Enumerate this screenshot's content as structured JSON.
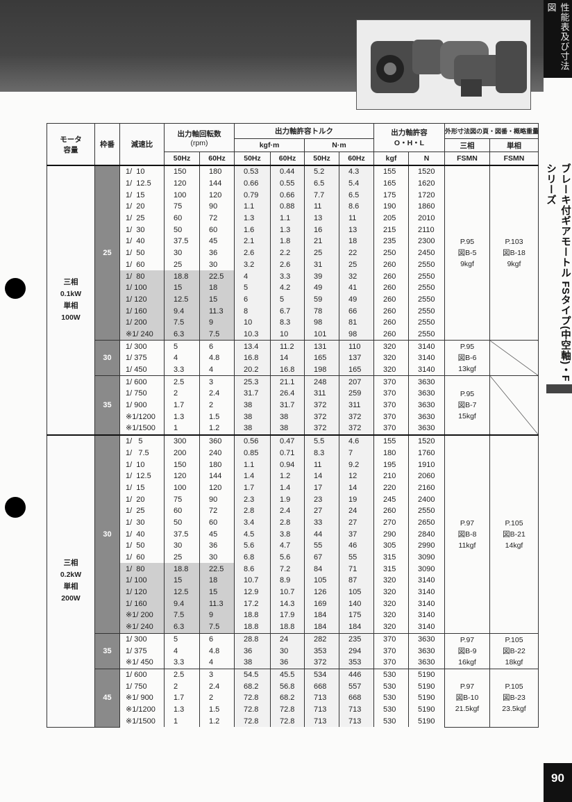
{
  "side_tab": "性能表及び寸法図",
  "side_title": "ブレーキ付ギアモートル FSタイプ(中空軸)・Fシリーズ",
  "page_number": "90",
  "header": {
    "motor": "モータ容量",
    "frame": "枠番",
    "ratio": "減速比",
    "speed": "出力軸回転数",
    "speed_unit": "(rpm)",
    "torque": "出力軸許容トルク",
    "kgfm": "kgf·m",
    "nm": "N·m",
    "ohl": "出力軸許容",
    "ohl_sub": "O・H・L",
    "dims": "外形寸法図の頁・図番・概略重量",
    "three_phase": "三相",
    "single_phase": "単相",
    "hz50": "50Hz",
    "hz60": "60Hz",
    "kgf": "kgf",
    "n": "N",
    "fsmn": "FSMN"
  },
  "sections": [
    {
      "motor": [
        "三相",
        "0.1kW",
        "単相",
        "100W"
      ],
      "groups": [
        {
          "frame": "25",
          "three": [
            "P.95",
            "図B-5",
            "9kgf"
          ],
          "single": [
            "P.103",
            "図B-18",
            "9kgf"
          ],
          "rows": [
            [
              "1/  10",
              "150",
              "180",
              "0.53",
              "0.44",
              "5.2",
              "4.3",
              "155",
              "1520",
              false
            ],
            [
              "1/  12.5",
              "120",
              "144",
              "0.66",
              "0.55",
              "6.5",
              "5.4",
              "165",
              "1620",
              false
            ],
            [
              "1/  15",
              "100",
              "120",
              "0.79",
              "0.66",
              "7.7",
              "6.5",
              "175",
              "1720",
              false
            ],
            [
              "1/  20",
              "75",
              "90",
              "1.1",
              "0.88",
              "11",
              "8.6",
              "190",
              "1860",
              false
            ],
            [
              "1/  25",
              "60",
              "72",
              "1.3",
              "1.1",
              "13",
              "11",
              "205",
              "2010",
              false
            ],
            [
              "1/  30",
              "50",
              "60",
              "1.6",
              "1.3",
              "16",
              "13",
              "215",
              "2110",
              false
            ],
            [
              "1/  40",
              "37.5",
              "45",
              "2.1",
              "1.8",
              "21",
              "18",
              "235",
              "2300",
              false
            ],
            [
              "1/  50",
              "30",
              "36",
              "2.6",
              "2.2",
              "25",
              "22",
              "250",
              "2450",
              false
            ],
            [
              "1/  60",
              "25",
              "30",
              "3.2",
              "2.6",
              "31",
              "25",
              "260",
              "2550",
              false
            ],
            [
              "1/  80",
              "18.8",
              "22.5",
              "4",
              "3.3",
              "39",
              "32",
              "260",
              "2550",
              true
            ],
            [
              "1/ 100",
              "15",
              "18",
              "5",
              "4.2",
              "49",
              "41",
              "260",
              "2550",
              true
            ],
            [
              "1/ 120",
              "12.5",
              "15",
              "6",
              "5",
              "59",
              "49",
              "260",
              "2550",
              true
            ],
            [
              "1/ 160",
              "9.4",
              "11.3",
              "8",
              "6.7",
              "78",
              "66",
              "260",
              "2550",
              true
            ],
            [
              "1/ 200",
              "7.5",
              "9",
              "10",
              "8.3",
              "98",
              "81",
              "260",
              "2550",
              true
            ],
            [
              "※1/ 240",
              "6.3",
              "7.5",
              "10.3",
              "10",
              "101",
              "98",
              "260",
              "2550",
              true
            ]
          ]
        },
        {
          "frame": "30",
          "three": [
            "P.95",
            "図B-6",
            "13kgf"
          ],
          "single": null,
          "rows": [
            [
              "1/ 300",
              "5",
              "6",
              "13.4",
              "11.2",
              "131",
              "110",
              "320",
              "3140",
              false
            ],
            [
              "1/ 375",
              "4",
              "4.8",
              "16.8",
              "14",
              "165",
              "137",
              "320",
              "3140",
              false
            ],
            [
              "1/ 450",
              "3.3",
              "4",
              "20.2",
              "16.8",
              "198",
              "165",
              "320",
              "3140",
              false
            ]
          ]
        },
        {
          "frame": "35",
          "three": [
            "P.95",
            "図B-7",
            "15kgf"
          ],
          "single": null,
          "rows": [
            [
              "1/ 600",
              "2.5",
              "3",
              "25.3",
              "21.1",
              "248",
              "207",
              "370",
              "3630",
              false
            ],
            [
              "1/ 750",
              "2",
              "2.4",
              "31.7",
              "26.4",
              "311",
              "259",
              "370",
              "3630",
              false
            ],
            [
              "1/ 900",
              "1.7",
              "2",
              "38",
              "31.7",
              "372",
              "311",
              "370",
              "3630",
              false
            ],
            [
              "※1/1200",
              "1.3",
              "1.5",
              "38",
              "38",
              "372",
              "372",
              "370",
              "3630",
              false
            ],
            [
              "※1/1500",
              "1",
              "1.2",
              "38",
              "38",
              "372",
              "372",
              "370",
              "3630",
              false
            ]
          ]
        }
      ]
    },
    {
      "motor": [
        "三相",
        "0.2kW",
        "単相",
        "200W"
      ],
      "groups": [
        {
          "frame": "30",
          "three": [
            "P.97",
            "図B-8",
            "11kgf"
          ],
          "single": [
            "P.105",
            "図B-21",
            "14kgf"
          ],
          "rows": [
            [
              "1/   5",
              "300",
              "360",
              "0.56",
              "0.47",
              "5.5",
              "4.6",
              "155",
              "1520",
              false
            ],
            [
              "1/   7.5",
              "200",
              "240",
              "0.85",
              "0.71",
              "8.3",
              "7",
              "180",
              "1760",
              false
            ],
            [
              "1/  10",
              "150",
              "180",
              "1.1",
              "0.94",
              "11",
              "9.2",
              "195",
              "1910",
              false
            ],
            [
              "1/  12.5",
              "120",
              "144",
              "1.4",
              "1.2",
              "14",
              "12",
              "210",
              "2060",
              false
            ],
            [
              "1/  15",
              "100",
              "120",
              "1.7",
              "1.4",
              "17",
              "14",
              "220",
              "2160",
              false
            ],
            [
              "1/  20",
              "75",
              "90",
              "2.3",
              "1.9",
              "23",
              "19",
              "245",
              "2400",
              false
            ],
            [
              "1/  25",
              "60",
              "72",
              "2.8",
              "2.4",
              "27",
              "24",
              "260",
              "2550",
              false
            ],
            [
              "1/  30",
              "50",
              "60",
              "3.4",
              "2.8",
              "33",
              "27",
              "270",
              "2650",
              false
            ],
            [
              "1/  40",
              "37.5",
              "45",
              "4.5",
              "3.8",
              "44",
              "37",
              "290",
              "2840",
              false
            ],
            [
              "1/  50",
              "30",
              "36",
              "5.6",
              "4.7",
              "55",
              "46",
              "305",
              "2990",
              false
            ],
            [
              "1/  60",
              "25",
              "30",
              "6.8",
              "5.6",
              "67",
              "55",
              "315",
              "3090",
              false
            ],
            [
              "1/  80",
              "18.8",
              "22.5",
              "8.6",
              "7.2",
              "84",
              "71",
              "315",
              "3090",
              true
            ],
            [
              "1/ 100",
              "15",
              "18",
              "10.7",
              "8.9",
              "105",
              "87",
              "320",
              "3140",
              true
            ],
            [
              "1/ 120",
              "12.5",
              "15",
              "12.9",
              "10.7",
              "126",
              "105",
              "320",
              "3140",
              true
            ],
            [
              "1/ 160",
              "9.4",
              "11.3",
              "17.2",
              "14.3",
              "169",
              "140",
              "320",
              "3140",
              true
            ],
            [
              "※1/ 200",
              "7.5",
              "9",
              "18.8",
              "17.9",
              "184",
              "175",
              "320",
              "3140",
              true
            ],
            [
              "※1/ 240",
              "6.3",
              "7.5",
              "18.8",
              "18.8",
              "184",
              "184",
              "320",
              "3140",
              true
            ]
          ]
        },
        {
          "frame": "35",
          "three": [
            "P.97",
            "図B-9",
            "16kgf"
          ],
          "single": [
            "P.105",
            "図B-22",
            "18kgf"
          ],
          "rows": [
            [
              "1/ 300",
              "5",
              "6",
              "28.8",
              "24",
              "282",
              "235",
              "370",
              "3630",
              false
            ],
            [
              "1/ 375",
              "4",
              "4.8",
              "36",
              "30",
              "353",
              "294",
              "370",
              "3630",
              false
            ],
            [
              "※1/ 450",
              "3.3",
              "4",
              "38",
              "36",
              "372",
              "353",
              "370",
              "3630",
              false
            ]
          ]
        },
        {
          "frame": "45",
          "three": [
            "P.97",
            "図B-10",
            "21.5kgf"
          ],
          "single": [
            "P.105",
            "図B-23",
            "23.5kgf"
          ],
          "rows": [
            [
              "1/ 600",
              "2.5",
              "3",
              "54.5",
              "45.5",
              "534",
              "446",
              "530",
              "5190",
              false
            ],
            [
              "1/ 750",
              "2",
              "2.4",
              "68.2",
              "56.8",
              "668",
              "557",
              "530",
              "5190",
              false
            ],
            [
              "※1/ 900",
              "1.7",
              "2",
              "72.8",
              "68.2",
              "713",
              "668",
              "530",
              "5190",
              false
            ],
            [
              "※1/1200",
              "1.3",
              "1.5",
              "72.8",
              "72.8",
              "713",
              "713",
              "530",
              "5190",
              false
            ],
            [
              "※1/1500",
              "1",
              "1.2",
              "72.8",
              "72.8",
              "713",
              "713",
              "530",
              "5190",
              false
            ]
          ]
        }
      ]
    }
  ]
}
